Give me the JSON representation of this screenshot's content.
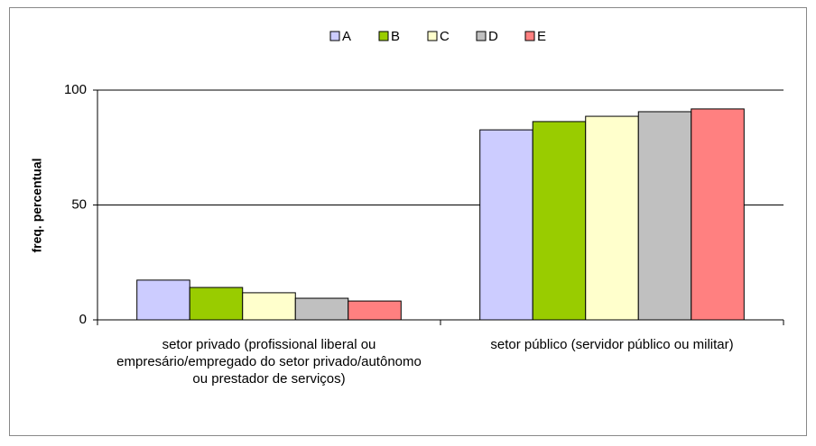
{
  "chart_data": {
    "type": "bar",
    "y_label": "freq. percentual",
    "categories": [
      "setor privado (profissional liberal ou empresário/empregado do setor privado/autônomo ou prestador de serviços)",
      "setor público (servidor público ou militar)"
    ],
    "series": [
      {
        "name": "A",
        "color": "#ccccff",
        "values": [
          17.3,
          82.7
        ]
      },
      {
        "name": "B",
        "color": "#99cc00",
        "values": [
          14.1,
          86.3
        ]
      },
      {
        "name": "C",
        "color": "#ffffcc",
        "values": [
          11.8,
          88.6
        ]
      },
      {
        "name": "D",
        "color": "#c0c0c0",
        "values": [
          9.4,
          90.6
        ]
      },
      {
        "name": "E",
        "color": "#ff8080",
        "values": [
          8.2,
          91.8
        ]
      }
    ],
    "ylim": [
      0,
      100
    ],
    "yticks": [
      0,
      50,
      100
    ],
    "grid": true,
    "legend": "top"
  }
}
